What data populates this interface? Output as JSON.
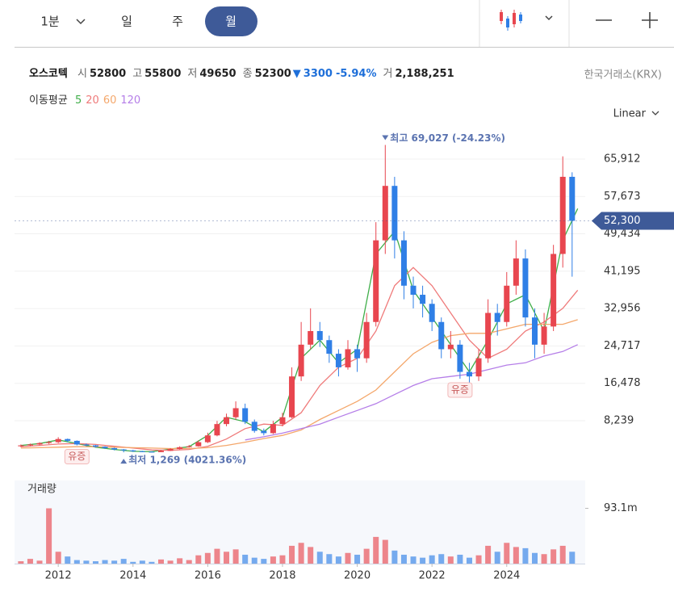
{
  "toolbar": {
    "tabs": [
      "1분",
      "일",
      "주",
      "월"
    ]
  },
  "quote": {
    "name": "오스코텍",
    "items": [
      {
        "label": "시",
        "value": "52800"
      },
      {
        "label": "고",
        "value": "55800"
      },
      {
        "label": "저",
        "value": "49650"
      },
      {
        "label": "종",
        "value": "52300"
      }
    ],
    "change": "3300",
    "change_pct": "-5.94%",
    "volume_label": "거",
    "volume": "2,188,251"
  },
  "exchange": "한국거래소(KRX)",
  "scale_mode": "Linear",
  "chart_data": {
    "type": "candlestick",
    "up_color": "#e8464f",
    "down_color": "#2f7fe6",
    "xlim": [
      2010.83,
      2026.1
    ],
    "xticks": [
      2012,
      2014,
      2016,
      2018,
      2020,
      2022,
      2024
    ],
    "ylim": [
      -2262,
      70715
    ],
    "yticks": [
      {
        "value": 8239,
        "label": "8,239"
      },
      {
        "value": 16478,
        "label": "16,478"
      },
      {
        "value": 24717,
        "label": "24,717"
      },
      {
        "value": 32956,
        "label": "32,956"
      },
      {
        "value": 41195,
        "label": "41,195"
      },
      {
        "value": 49434,
        "label": "49,434"
      },
      {
        "value": 57673,
        "label": "57,673"
      },
      {
        "value": 65912,
        "label": "65,912"
      }
    ],
    "grid": true,
    "candles": {
      "x": [
        2011,
        2011.25,
        2011.5,
        2011.75,
        2012,
        2012.25,
        2012.5,
        2012.75,
        2013,
        2013.25,
        2013.5,
        2013.75,
        2014,
        2014.25,
        2014.5,
        2014.75,
        2015,
        2015.25,
        2015.5,
        2015.75,
        2016,
        2016.25,
        2016.5,
        2016.75,
        2017,
        2017.25,
        2017.5,
        2017.75,
        2018,
        2018.25,
        2018.5,
        2018.75,
        2019,
        2019.25,
        2019.5,
        2019.75,
        2020,
        2020.25,
        2020.5,
        2020.75,
        2021,
        2021.25,
        2021.5,
        2021.75,
        2022,
        2022.25,
        2022.5,
        2022.75,
        2023,
        2023.25,
        2023.5,
        2023.75,
        2024,
        2024.25,
        2024.5,
        2024.75,
        2025,
        2025.25,
        2025.5,
        2025.75
      ],
      "open": [
        2600,
        2800,
        3000,
        3300,
        3500,
        4200,
        3800,
        3000,
        2800,
        2500,
        2200,
        1900,
        1700,
        1500,
        1400,
        1300,
        1600,
        2000,
        2400,
        2600,
        3500,
        5000,
        7500,
        9000,
        11000,
        8000,
        6000,
        5500,
        7500,
        9000,
        18000,
        25000,
        28000,
        26000,
        23000,
        20000,
        24000,
        22000,
        30000,
        48000,
        60000,
        48000,
        38000,
        36000,
        34000,
        30000,
        24000,
        25000,
        19000,
        18000,
        22000,
        32000,
        30000,
        38000,
        44000,
        31000,
        25000,
        29000,
        45000,
        62000
      ],
      "high": [
        3000,
        3200,
        3500,
        3800,
        4600,
        4300,
        3900,
        3200,
        2900,
        2600,
        2300,
        2000,
        1800,
        1600,
        1500,
        1800,
        2200,
        2600,
        2900,
        3900,
        5600,
        8200,
        9800,
        12500,
        12000,
        8500,
        6500,
        8200,
        10000,
        20000,
        30000,
        33000,
        30000,
        27000,
        24000,
        26000,
        25000,
        32000,
        52000,
        69027,
        62000,
        50000,
        40000,
        38000,
        35000,
        31000,
        28000,
        26000,
        21000,
        24000,
        35000,
        34000,
        41000,
        48000,
        46000,
        33000,
        32000,
        47000,
        66500,
        63000
      ],
      "low": [
        2400,
        2600,
        2800,
        3100,
        3300,
        3500,
        2800,
        2600,
        2300,
        2000,
        1700,
        1269,
        1350,
        1300,
        1280,
        1300,
        1550,
        1900,
        2300,
        2500,
        3300,
        4800,
        7000,
        8500,
        7500,
        5600,
        5000,
        5300,
        7000,
        8800,
        17000,
        24000,
        24500,
        21000,
        18000,
        19500,
        19000,
        21000,
        29000,
        45000,
        44000,
        35000,
        33000,
        31000,
        28000,
        22000,
        22000,
        17500,
        16500,
        17000,
        21000,
        27000,
        29000,
        36000,
        29000,
        22000,
        23000,
        28000,
        42000,
        40000
      ],
      "close": [
        2800,
        3000,
        3300,
        3500,
        4200,
        3800,
        3000,
        2800,
        2500,
        2200,
        1900,
        1700,
        1500,
        1400,
        1300,
        1600,
        2000,
        2400,
        2600,
        3500,
        5000,
        7500,
        9000,
        11000,
        8000,
        6000,
        5500,
        7500,
        9000,
        18000,
        25000,
        28000,
        26000,
        23000,
        20000,
        24000,
        22000,
        30000,
        48000,
        60000,
        48000,
        38000,
        36000,
        34000,
        30000,
        24000,
        25000,
        19000,
        18000,
        22000,
        32000,
        30000,
        38000,
        44000,
        31000,
        25000,
        29000,
        45000,
        62000,
        52300
      ]
    },
    "ma": {
      "label": "이동평균",
      "series": [
        {
          "name": "5",
          "color": "#3fae49",
          "x": [
            2011,
            2011.5,
            2012,
            2012.5,
            2013,
            2013.5,
            2014,
            2014.5,
            2015,
            2015.5,
            2016,
            2016.5,
            2017,
            2017.5,
            2018,
            2018.5,
            2019,
            2019.5,
            2020,
            2020.5,
            2021,
            2021.5,
            2022,
            2022.5,
            2023,
            2023.5,
            2024,
            2024.5,
            2025,
            2025.5,
            2025.9
          ],
          "values": [
            2800,
            3200,
            4000,
            3200,
            2400,
            1900,
            1500,
            1400,
            2000,
            2500,
            5000,
            9000,
            8000,
            5800,
            9000,
            22000,
            26000,
            21000,
            24000,
            45000,
            50000,
            37000,
            31000,
            25000,
            19000,
            26000,
            34000,
            36000,
            28000,
            48000,
            55000
          ]
        },
        {
          "name": "20",
          "color": "#ef7a7a",
          "x": [
            2011,
            2011.5,
            2012,
            2012.5,
            2013,
            2013.5,
            2014,
            2014.5,
            2015,
            2015.5,
            2016,
            2016.5,
            2017,
            2017.5,
            2018,
            2018.5,
            2019,
            2019.5,
            2020,
            2020.5,
            2021,
            2021.5,
            2022,
            2022.5,
            2023,
            2023.5,
            2024,
            2024.5,
            2025,
            2025.5,
            2025.9
          ],
          "values": [
            2500,
            2800,
            3100,
            3200,
            3000,
            2600,
            2200,
            1800,
            1700,
            1900,
            2600,
            4200,
            6500,
            7500,
            7200,
            10000,
            16000,
            20000,
            22000,
            28000,
            38000,
            42000,
            38000,
            32000,
            26000,
            22000,
            24000,
            28000,
            30000,
            33000,
            37000
          ]
        },
        {
          "name": "60",
          "color": "#f4a76b",
          "x": [
            2011,
            2011.5,
            2012,
            2012.5,
            2013,
            2013.5,
            2014,
            2014.5,
            2015,
            2015.5,
            2016,
            2016.5,
            2017,
            2017.5,
            2018,
            2018.5,
            2019,
            2019.5,
            2020,
            2020.5,
            2021,
            2021.5,
            2022,
            2022.5,
            2023,
            2023.5,
            2024,
            2024.5,
            2025,
            2025.5,
            2025.9
          ],
          "values": [
            2200,
            2300,
            2400,
            2500,
            2500,
            2400,
            2300,
            2200,
            2100,
            2100,
            2300,
            2800,
            3500,
            4300,
            5000,
            6200,
            8500,
            10500,
            12500,
            15000,
            19000,
            23000,
            25500,
            27000,
            27500,
            27500,
            28500,
            29500,
            29500,
            29500,
            30500
          ]
        },
        {
          "name": "120",
          "color": "#b57ee8",
          "x": [
            2011,
            2011.5,
            2012,
            2012.5,
            2013,
            2013.5,
            2014,
            2014.5,
            2015,
            2015.5,
            2016,
            2016.5,
            2017,
            2017.5,
            2018,
            2018.5,
            2019,
            2019.5,
            2020,
            2020.5,
            2021,
            2021.5,
            2022,
            2022.5,
            2023,
            2023.5,
            2024,
            2024.5,
            2025,
            2025.5,
            2025.9
          ],
          "values": [
            null,
            null,
            null,
            null,
            null,
            null,
            null,
            null,
            null,
            null,
            null,
            null,
            4000,
            4700,
            5500,
            6500,
            7500,
            9000,
            10500,
            12000,
            14000,
            16000,
            17500,
            18000,
            18500,
            19500,
            20500,
            21000,
            22500,
            23500,
            25000
          ]
        }
      ]
    },
    "last_price": {
      "value": 52300,
      "label": "52,300"
    },
    "annotations": [
      {
        "text": "최고 69,027 (-24.23%)",
        "x": 2020.75,
        "value": 69027
      },
      {
        "text": "최저 1,269 (4021.36%)",
        "x": 2013.75,
        "value": 1269
      },
      {
        "text": "유증",
        "x": 2012.5
      },
      {
        "text": "유증",
        "x": 2022.75
      }
    ],
    "volume": {
      "label": "거래량",
      "ylim": [
        0,
        140
      ],
      "yticks": [
        {
          "value": 93.1,
          "label": "93.1m"
        }
      ],
      "values": [
        4,
        8,
        5,
        93.1,
        20,
        12,
        6,
        5,
        4,
        6,
        5,
        8,
        3,
        5,
        3,
        7,
        5,
        9,
        6,
        14,
        18,
        25,
        20,
        24,
        15,
        10,
        8,
        12,
        14,
        30,
        35,
        28,
        20,
        16,
        12,
        18,
        15,
        25,
        45,
        40,
        22,
        15,
        12,
        10,
        14,
        16,
        12,
        15,
        10,
        14,
        30,
        20,
        35,
        28,
        26,
        18,
        16,
        24,
        30,
        20
      ]
    }
  }
}
